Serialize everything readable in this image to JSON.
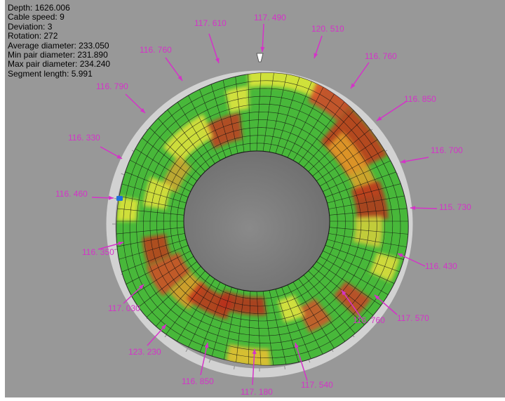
{
  "colors": {
    "background": "#989898",
    "frame": "#ffffff",
    "ring": "#d2d2d2",
    "callout": "#d433c8",
    "surface_base": "#48b83a",
    "mesh": "#101010",
    "bore": "#808080"
  },
  "info": [
    {
      "label": "Depth",
      "value": "1626.006"
    },
    {
      "label": "Cable speed",
      "value": "9"
    },
    {
      "label": "Deviation",
      "value": "3"
    },
    {
      "label": "Rotation",
      "value": "272"
    },
    {
      "label": "Average diameter",
      "value": "233.050"
    },
    {
      "label": "Min pair diameter",
      "value": "231.890"
    },
    {
      "label": "Max pair diameter",
      "value": "234.240"
    },
    {
      "label": "Segment length",
      "value": "5.991"
    }
  ],
  "callouts": [
    {
      "text": "117. 490"
    },
    {
      "text": "120. 510"
    },
    {
      "text": "116. 760"
    },
    {
      "text": "116. 850"
    },
    {
      "text": "116. 700"
    },
    {
      "text": "115. 730"
    },
    {
      "text": "116. 430"
    },
    {
      "text": "117. 570"
    },
    {
      "text": "116. 760"
    },
    {
      "text": "117. 540"
    },
    {
      "text": "117. 180"
    },
    {
      "text": "116. 850"
    },
    {
      "text": "123. 230"
    },
    {
      "text": "117. 030"
    },
    {
      "text": "116. 350"
    },
    {
      "text": "116. 460"
    },
    {
      "text": "116. 330"
    },
    {
      "text": "116. 790"
    },
    {
      "text": "116. 760"
    },
    {
      "text": "117. 610"
    }
  ],
  "markers": [
    {
      "name": "top-marker",
      "color": "#ffffff"
    },
    {
      "name": "left-marker",
      "color": "#1e6fd9"
    }
  ]
}
